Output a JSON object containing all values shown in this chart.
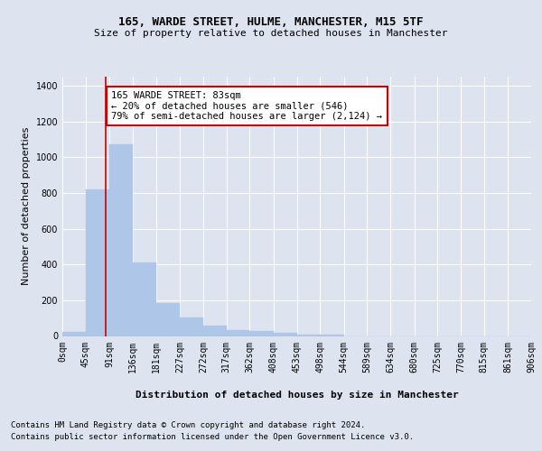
{
  "title_line1": "165, WARDE STREET, HULME, MANCHESTER, M15 5TF",
  "title_line2": "Size of property relative to detached houses in Manchester",
  "xlabel": "Distribution of detached houses by size in Manchester",
  "ylabel": "Number of detached properties",
  "bar_values": [
    22,
    820,
    1070,
    410,
    185,
    105,
    57,
    35,
    30,
    20,
    10,
    8,
    0,
    0,
    0,
    0,
    0,
    0,
    0,
    0
  ],
  "bin_edges": [
    0,
    45,
    91,
    136,
    181,
    227,
    272,
    317,
    362,
    408,
    453,
    498,
    544,
    589,
    634,
    680,
    725,
    770,
    815,
    861,
    906
  ],
  "tick_labels": [
    "0sqm",
    "45sqm",
    "91sqm",
    "136sqm",
    "181sqm",
    "227sqm",
    "272sqm",
    "317sqm",
    "362sqm",
    "408sqm",
    "453sqm",
    "498sqm",
    "544sqm",
    "589sqm",
    "634sqm",
    "680sqm",
    "725sqm",
    "770sqm",
    "815sqm",
    "861sqm",
    "906sqm"
  ],
  "bar_color": "#aec6e8",
  "bar_edge_color": "#aec6e8",
  "vline_x": 83,
  "vline_color": "#cc0000",
  "annotation_text": "165 WARDE STREET: 83sqm\n← 20% of detached houses are smaller (546)\n79% of semi-detached houses are larger (2,124) →",
  "annotation_box_color": "#ffffff",
  "annotation_box_edge": "#cc0000",
  "ylim": [
    0,
    1450
  ],
  "yticks": [
    0,
    200,
    400,
    600,
    800,
    1000,
    1200,
    1400
  ],
  "background_color": "#dde4ef",
  "plot_bg_color": "#dde4ef",
  "grid_color": "#ffffff",
  "footer_line1": "Contains HM Land Registry data © Crown copyright and database right 2024.",
  "footer_line2": "Contains public sector information licensed under the Open Government Licence v3.0.",
  "title_fontsize": 9,
  "subtitle_fontsize": 8,
  "axis_label_fontsize": 8,
  "tick_fontsize": 7,
  "annotation_fontsize": 7.5,
  "footer_fontsize": 6.5
}
